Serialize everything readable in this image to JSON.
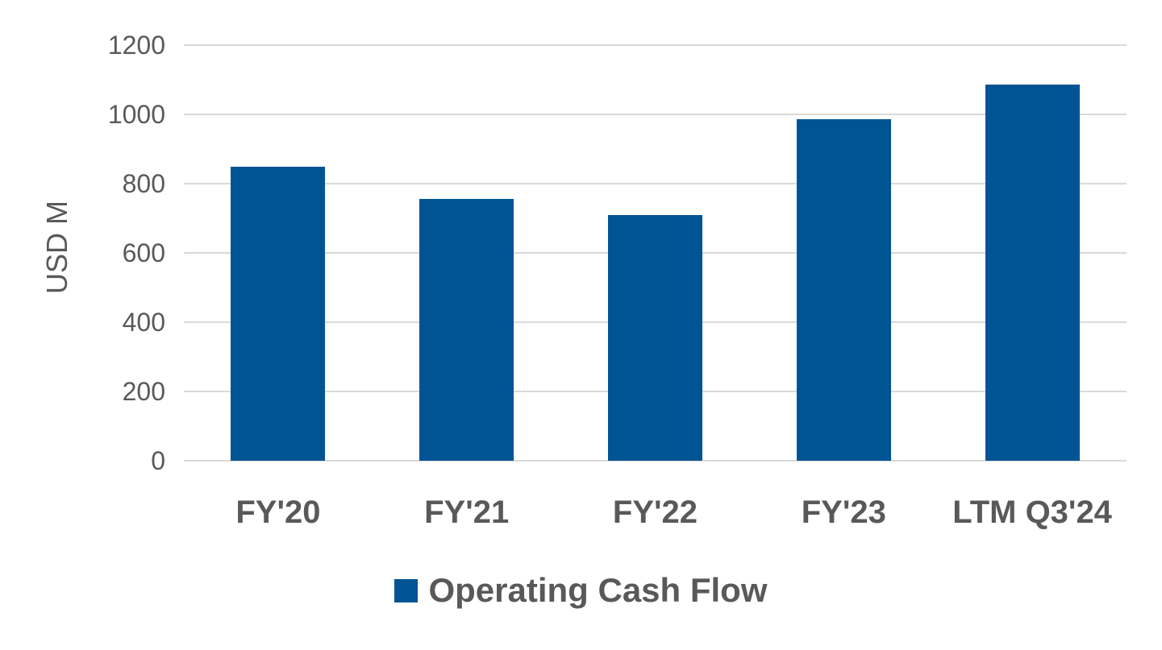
{
  "chart_data": {
    "type": "bar",
    "title": "",
    "categories": [
      "FY'20",
      "FY'21",
      "FY'22",
      "FY'23",
      "LTM Q3'24"
    ],
    "series": [
      {
        "name": "Operating Cash Flow",
        "values": [
          850,
          755,
          710,
          985,
          1085
        ]
      }
    ],
    "xlabel": "",
    "ylabel": "USD M",
    "ylim": [
      0,
      1200
    ],
    "yticks": [
      0,
      200,
      400,
      600,
      800,
      1000,
      1200
    ],
    "grid": "horizontal",
    "legend_position": "bottom",
    "colors": {
      "bar": "#005494",
      "gridline": "#D9D9D9",
      "text": "#595959",
      "background": "#FFFFFF"
    }
  },
  "legend": {
    "items": [
      {
        "label": "Operating Cash Flow",
        "swatch_color": "#005494"
      }
    ]
  }
}
